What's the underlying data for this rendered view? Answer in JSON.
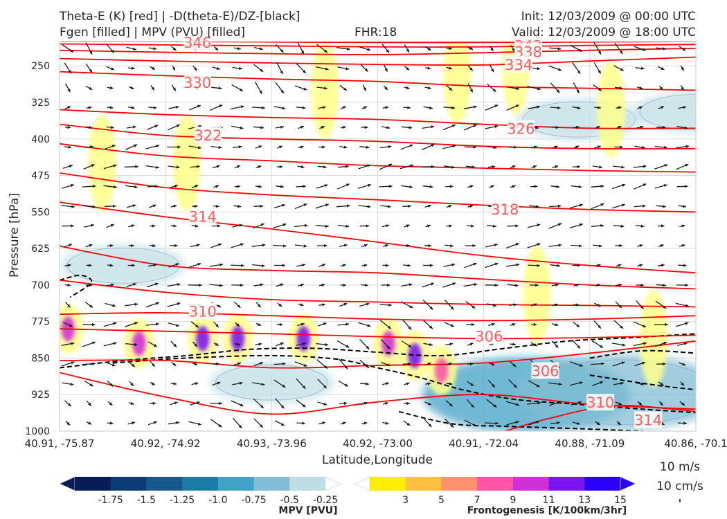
{
  "header": {
    "title_left_1": "Theta-E (K) [red] | -D(theta-E)/DZ-[black]",
    "title_left_2": "Fgen [filled] | MPV (PVU) [filled]",
    "title_center": "FHR:18",
    "title_right_1": "Init: 12/03/2009 @ 00:00 UTC",
    "title_right_2": "Valid: 12/03/2009 @ 18:00 UTC"
  },
  "chart_data": {
    "type": "cross-section",
    "xlabel": "Latitude,Longitude",
    "ylabel": "Pressure [hPa]",
    "x_ticks": [
      "40.91, -75.87",
      "40.92, -74.92",
      "40.93, -73.96",
      "40.92, -73.00",
      "40.91, -72.04",
      "40.88, -71.09",
      "40.86, -70.1"
    ],
    "y_ticks": [
      250,
      325,
      400,
      475,
      550,
      625,
      700,
      775,
      850,
      925,
      1000
    ],
    "ylim": [
      1000,
      200
    ],
    "y_scale": "linear",
    "grid": true,
    "theta_e_labels": [
      {
        "text": "346",
        "x": 1.3,
        "p": 203
      },
      {
        "text": "342",
        "x": 4.42,
        "p": 209
      },
      {
        "text": "338",
        "x": 4.42,
        "p": 222
      },
      {
        "text": "334",
        "x": 4.33,
        "p": 248
      },
      {
        "text": "330",
        "x": 1.3,
        "p": 285
      },
      {
        "text": "326",
        "x": 4.35,
        "p": 380
      },
      {
        "text": "322",
        "x": 1.4,
        "p": 393
      },
      {
        "text": "318",
        "x": 4.2,
        "p": 545
      },
      {
        "text": "314",
        "x": 1.35,
        "p": 560
      },
      {
        "text": "310",
        "x": 1.35,
        "p": 755
      },
      {
        "text": "306",
        "x": 4.05,
        "p": 806
      },
      {
        "text": "306",
        "x": 4.58,
        "p": 877
      },
      {
        "text": "310",
        "x": 5.1,
        "p": 942
      },
      {
        "text": "314",
        "x": 5.55,
        "p": 978
      }
    ],
    "theta_e_lines": [
      {
        "value": 346,
        "points": [
          [
            0,
            200
          ],
          [
            1,
            200
          ],
          [
            2,
            201
          ],
          [
            3,
            202
          ],
          [
            4,
            202
          ],
          [
            5,
            201
          ],
          [
            6,
            200
          ]
        ]
      },
      {
        "value": 342,
        "points": [
          [
            0,
            205
          ],
          [
            1,
            207
          ],
          [
            2,
            209
          ],
          [
            3,
            211
          ],
          [
            4,
            211
          ],
          [
            5,
            208
          ],
          [
            6,
            206
          ]
        ]
      },
      {
        "value": 338,
        "points": [
          [
            0,
            218
          ],
          [
            1,
            222
          ],
          [
            2,
            225
          ],
          [
            3,
            227
          ],
          [
            4,
            223
          ],
          [
            5,
            218
          ],
          [
            6,
            214
          ]
        ]
      },
      {
        "value": 334,
        "points": [
          [
            0,
            235
          ],
          [
            1,
            240
          ],
          [
            2,
            244
          ],
          [
            3,
            247
          ],
          [
            4,
            248
          ],
          [
            5,
            240
          ],
          [
            6,
            232
          ]
        ]
      },
      {
        "value": 330,
        "points": [
          [
            0,
            262
          ],
          [
            1,
            270
          ],
          [
            2,
            277
          ],
          [
            3,
            282
          ],
          [
            4,
            292
          ],
          [
            5,
            296
          ],
          [
            6,
            300
          ]
        ]
      },
      {
        "value": 326,
        "points": [
          [
            0,
            340
          ],
          [
            1,
            350
          ],
          [
            2,
            356
          ],
          [
            3,
            360
          ],
          [
            4,
            370
          ],
          [
            5,
            378
          ],
          [
            6,
            378
          ]
        ]
      },
      {
        "value": 322,
        "points": [
          [
            0,
            370
          ],
          [
            1,
            393
          ],
          [
            2,
            400
          ],
          [
            3,
            405
          ],
          [
            4,
            415
          ],
          [
            5,
            420
          ],
          [
            6,
            420
          ]
        ]
      },
      {
        "value": 322,
        "points": [
          [
            0,
            410
          ],
          [
            1,
            435
          ],
          [
            2,
            445
          ],
          [
            3,
            455
          ],
          [
            4,
            460
          ],
          [
            5,
            465
          ],
          [
            6,
            468
          ]
        ]
      },
      {
        "value": 318,
        "points": [
          [
            0,
            470
          ],
          [
            1,
            500
          ],
          [
            2,
            515
          ],
          [
            3,
            525
          ],
          [
            4,
            536
          ],
          [
            5,
            545
          ],
          [
            6,
            550
          ]
        ]
      },
      {
        "value": 314,
        "points": [
          [
            0,
            530
          ],
          [
            1,
            560
          ],
          [
            2,
            585
          ],
          [
            3,
            612
          ],
          [
            4,
            640
          ],
          [
            5,
            660
          ],
          [
            6,
            675
          ]
        ]
      },
      {
        "value": 314,
        "points": [
          [
            0,
            620
          ],
          [
            1,
            660
          ],
          [
            2,
            670
          ],
          [
            3,
            675
          ],
          [
            4,
            688
          ],
          [
            5,
            700
          ],
          [
            6,
            708
          ]
        ]
      },
      {
        "value": 310,
        "points": [
          [
            0,
            690
          ],
          [
            1,
            715
          ],
          [
            2,
            730
          ],
          [
            3,
            735
          ],
          [
            4,
            740
          ],
          [
            5,
            742
          ],
          [
            6,
            745
          ]
        ]
      },
      {
        "value": 310,
        "points": [
          [
            0,
            760
          ],
          [
            1,
            757
          ],
          [
            2,
            763
          ],
          [
            3,
            770
          ],
          [
            4,
            773
          ],
          [
            5,
            770
          ],
          [
            6,
            763
          ]
        ]
      },
      {
        "value": 306,
        "points": [
          [
            0,
            790
          ],
          [
            1,
            795
          ],
          [
            2,
            800
          ],
          [
            3,
            806
          ],
          [
            4,
            810
          ],
          [
            5,
            808
          ],
          [
            6,
            803
          ]
        ]
      },
      {
        "value": 306,
        "points": [
          [
            0,
            855
          ],
          [
            1,
            855
          ],
          [
            2,
            870
          ],
          [
            3,
            865
          ],
          [
            4,
            860
          ],
          [
            5,
            840
          ],
          [
            6,
            815
          ]
        ]
      },
      {
        "value": 310,
        "points": [
          [
            0,
            880
          ],
          [
            1,
            930
          ],
          [
            2,
            965
          ],
          [
            3,
            940
          ],
          [
            4,
            925
          ],
          [
            5,
            945
          ],
          [
            6,
            955
          ]
        ]
      },
      {
        "value": 314,
        "points": [
          [
            4.2,
            1000
          ],
          [
            4.6,
            975
          ],
          [
            5.2,
            948
          ],
          [
            5.8,
            955
          ],
          [
            6,
            960
          ]
        ]
      }
    ],
    "dtheta_dz_lines": [
      {
        "points": [
          [
            0,
            690
          ],
          [
            0.2,
            680
          ],
          [
            0.3,
            695
          ],
          [
            0.1,
            725
          ]
        ]
      },
      {
        "points": [
          [
            0,
            870
          ],
          [
            0.6,
            855
          ],
          [
            1.2,
            845
          ],
          [
            1.8,
            832
          ],
          [
            2.4,
            830
          ],
          [
            3.0,
            838
          ],
          [
            3.6,
            845
          ],
          [
            4.2,
            830
          ],
          [
            4.8,
            815
          ],
          [
            5.4,
            808
          ],
          [
            6,
            800
          ]
        ]
      },
      {
        "points": [
          [
            0.5,
            860
          ],
          [
            1.2,
            850
          ],
          [
            2.0,
            845
          ],
          [
            2.6,
            852
          ],
          [
            3.0,
            870
          ],
          [
            3.4,
            890
          ],
          [
            3.8,
            915
          ],
          [
            4.3,
            935
          ],
          [
            4.9,
            945
          ],
          [
            5.5,
            955
          ],
          [
            6,
            962
          ]
        ]
      },
      {
        "points": [
          [
            3.2,
            960
          ],
          [
            3.7,
            985
          ],
          [
            4.2,
            990
          ],
          [
            4.9,
            995
          ],
          [
            5.5,
            1000
          ]
        ]
      },
      {
        "points": [
          [
            5.0,
            850
          ],
          [
            5.5,
            835
          ],
          [
            6,
            840
          ]
        ]
      },
      {
        "points": [
          [
            5.0,
            885
          ],
          [
            5.6,
            905
          ],
          [
            6,
            915
          ]
        ]
      }
    ],
    "fgen_cells": [
      {
        "x": 0.08,
        "p": 790,
        "value": 11
      },
      {
        "x": 0.75,
        "p": 820,
        "value": 11
      },
      {
        "x": 1.35,
        "p": 810,
        "value": 14
      },
      {
        "x": 1.68,
        "p": 810,
        "value": 14
      },
      {
        "x": 2.3,
        "p": 810,
        "value": 14
      },
      {
        "x": 3.1,
        "p": 820,
        "value": 11
      },
      {
        "x": 3.35,
        "p": 845,
        "value": 13
      },
      {
        "x": 3.6,
        "p": 875,
        "value": 9
      },
      {
        "x": 0.4,
        "p": 450,
        "value": 5
      },
      {
        "x": 1.2,
        "p": 450,
        "value": 5
      },
      {
        "x": 2.5,
        "p": 300,
        "value": 5
      },
      {
        "x": 3.75,
        "p": 270,
        "value": 5
      },
      {
        "x": 4.3,
        "p": 250,
        "value": 5
      },
      {
        "x": 5.2,
        "p": 340,
        "value": 3
      },
      {
        "x": 4.5,
        "p": 720,
        "value": 3
      },
      {
        "x": 5.6,
        "p": 810,
        "value": 3
      }
    ],
    "mpv_regions": [
      {
        "x": 0.6,
        "p": 660,
        "value": -0.25
      },
      {
        "x": 2.0,
        "p": 900,
        "value": -0.25
      },
      {
        "x": 4.4,
        "p": 925,
        "value": -0.75
      },
      {
        "x": 5.3,
        "p": 920,
        "value": -0.5
      },
      {
        "x": 4.9,
        "p": 360,
        "value": -0.25
      },
      {
        "x": 6.0,
        "p": 345,
        "value": -0.25
      }
    ],
    "mpv_colorbar": {
      "label": "MPV [PVU]",
      "ticks": [
        "-1.75",
        "-1.5",
        "-1.25",
        "-1.0",
        "-0.75",
        "-0.5",
        "-0.25"
      ],
      "colors": [
        "#081d58",
        "#0c3b7a",
        "#17598d",
        "#1e7aa6",
        "#41a2c6",
        "#81bdd4",
        "#bedde5",
        "#ffffff"
      ]
    },
    "fgen_colorbar": {
      "label": "Frontogenesis [K/100km/3hr]",
      "ticks": [
        "3",
        "5",
        "7",
        "9",
        "11",
        "13",
        "15"
      ],
      "colors": [
        "#ffffff",
        "#ffee00",
        "#ffc040",
        "#ff9070",
        "#ff55a8",
        "#d030d8",
        "#7a14f0",
        "#2a00ff"
      ]
    },
    "wind_key": {
      "label_1": "10 m/s",
      "label_2": "10 cm/s"
    },
    "colors": {
      "theta_e": "#ff0000",
      "theta_e_label": "#ff5a5a",
      "dtheta_dz": "#000000",
      "vectors": "#1a1a1a",
      "grid": "#d9d9d9"
    }
  }
}
